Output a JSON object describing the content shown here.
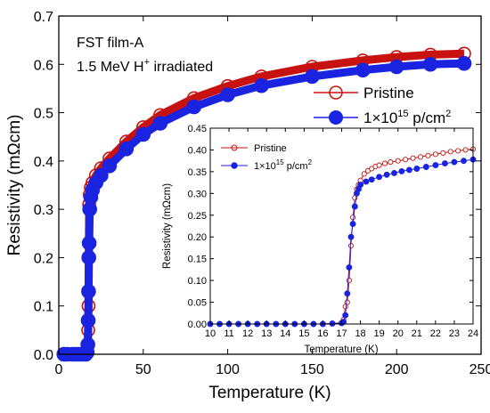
{
  "colors": {
    "pristine": "#c8120f",
    "irradiated": "#1a24e0",
    "pristine_fill": "#ff2020"
  },
  "chart_data": [
    {
      "type": "scatter",
      "panel": "main",
      "xlabel": "Temperature (K)",
      "ylabel": "Resistivity (mΩcm)",
      "xlim": [
        0,
        250
      ],
      "ylim": [
        0,
        0.7
      ],
      "xticks": [
        0,
        50,
        100,
        150,
        200,
        250
      ],
      "yticks": [
        0.0,
        0.1,
        0.2,
        0.3,
        0.4,
        0.5,
        0.6,
        0.7
      ],
      "xtick_labels": [
        "0",
        "50",
        "100",
        "150",
        "200",
        "250"
      ],
      "ytick_labels": [
        "0.0",
        "0.1",
        "0.2",
        "0.3",
        "0.4",
        "0.5",
        "0.6",
        "0.7"
      ],
      "grid": false,
      "legend_position": "right",
      "annotations": [
        "FST film-A",
        "1.5 MeV H",
        "+",
        " irradiated"
      ],
      "series": [
        {
          "name": "Pristine",
          "marker": "open-circle-line",
          "x": [
            3,
            5,
            8,
            10,
            12,
            14,
            16,
            16.8,
            17.2,
            17.4,
            17.6,
            17.8,
            18,
            18.3,
            19,
            20,
            22,
            25,
            30,
            40,
            50,
            60,
            80,
            100,
            120,
            150,
            180,
            200,
            220,
            240
          ],
          "y": [
            0,
            0,
            0,
            0,
            0,
            0,
            0,
            0.005,
            0.02,
            0.05,
            0.1,
            0.2,
            0.31,
            0.33,
            0.345,
            0.355,
            0.37,
            0.385,
            0.405,
            0.44,
            0.47,
            0.495,
            0.53,
            0.555,
            0.575,
            0.595,
            0.608,
            0.615,
            0.62,
            0.622
          ]
        },
        {
          "name": "1×10¹⁵ p/cm²",
          "marker": "filled-circle-line",
          "x": [
            3,
            5,
            8,
            10,
            12,
            14,
            16,
            16.8,
            17.2,
            17.4,
            17.6,
            17.8,
            18,
            18.3,
            19,
            20,
            22,
            25,
            30,
            40,
            50,
            60,
            80,
            100,
            120,
            150,
            180,
            200,
            220,
            240
          ],
          "y": [
            0,
            0,
            0,
            0,
            0,
            0,
            0,
            0.004,
            0.02,
            0.07,
            0.13,
            0.2,
            0.23,
            0.3,
            0.325,
            0.34,
            0.355,
            0.37,
            0.39,
            0.425,
            0.455,
            0.478,
            0.512,
            0.537,
            0.556,
            0.575,
            0.588,
            0.595,
            0.6,
            0.602
          ]
        }
      ],
      "legend_entries": [
        "Pristine",
        "1×10",
        "15",
        " p/cm",
        "2"
      ]
    },
    {
      "type": "line",
      "panel": "inset",
      "xlabel": "Temperature (K)",
      "ylabel": "Resistivity (mΩcm)",
      "xlim": [
        10,
        24
      ],
      "ylim": [
        0,
        0.45
      ],
      "xticks": [
        10,
        11,
        12,
        13,
        14,
        15,
        16,
        17,
        18,
        19,
        20,
        21,
        22,
        23,
        24
      ],
      "yticks": [
        0.0,
        0.05,
        0.1,
        0.15,
        0.2,
        0.25,
        0.3,
        0.35,
        0.4,
        0.45
      ],
      "xtick_labels": [
        "10",
        "11",
        "12",
        "13",
        "14",
        "15",
        "16",
        "17",
        "18",
        "19",
        "20",
        "21",
        "22",
        "23",
        "24"
      ],
      "ytick_labels": [
        "0.00",
        "0.05",
        "0.10",
        "0.15",
        "0.20",
        "0.25",
        "0.30",
        "0.35",
        "0.40",
        "0.45"
      ],
      "grid": false,
      "legend_position": "top-left",
      "series": [
        {
          "name": "Pristine",
          "marker": "open-circle-line",
          "x": [
            10,
            10.5,
            11,
            11.5,
            12,
            12.5,
            13,
            13.5,
            14,
            14.5,
            15,
            15.5,
            16,
            16.5,
            17,
            17.1,
            17.2,
            17.3,
            17.4,
            17.5,
            17.6,
            17.7,
            17.8,
            17.9,
            18,
            18.2,
            18.4,
            18.6,
            18.8,
            19,
            19.3,
            19.6,
            20,
            20.4,
            20.8,
            21.2,
            21.6,
            22,
            22.4,
            22.8,
            23.2,
            23.6,
            24
          ],
          "y": [
            0,
            0,
            0,
            0,
            0,
            0,
            0,
            0,
            0,
            0,
            0,
            0,
            0,
            0.001,
            0.003,
            0.01,
            0.04,
            0.05,
            0.1,
            0.18,
            0.245,
            0.29,
            0.31,
            0.32,
            0.33,
            0.345,
            0.352,
            0.357,
            0.362,
            0.365,
            0.369,
            0.372,
            0.375,
            0.378,
            0.381,
            0.384,
            0.387,
            0.39,
            0.393,
            0.396,
            0.398,
            0.4,
            0.402
          ]
        },
        {
          "name": "1×10¹⁵ p/cm²",
          "marker": "filled-circle-line",
          "x": [
            10,
            10.5,
            11,
            11.5,
            12,
            12.5,
            13,
            13.5,
            14,
            14.5,
            15,
            15.5,
            16,
            16.5,
            17,
            17.1,
            17.2,
            17.3,
            17.4,
            17.5,
            17.6,
            17.7,
            17.8,
            17.9,
            18,
            18.3,
            18.6,
            19,
            19.4,
            19.8,
            20.2,
            20.6,
            21,
            21.5,
            22,
            22.5,
            23,
            23.5,
            24
          ],
          "y": [
            0,
            0,
            0,
            0,
            0,
            0,
            0,
            0,
            0,
            0,
            0,
            0,
            0,
            0.001,
            0.002,
            0.005,
            0.02,
            0.07,
            0.13,
            0.2,
            0.23,
            0.27,
            0.3,
            0.31,
            0.32,
            0.327,
            0.332,
            0.338,
            0.343,
            0.347,
            0.351,
            0.354,
            0.357,
            0.361,
            0.365,
            0.369,
            0.372,
            0.375,
            0.378
          ]
        }
      ],
      "legend_entries": [
        "Pristine",
        "1×10",
        "15",
        " p/cm",
        "2"
      ]
    }
  ]
}
